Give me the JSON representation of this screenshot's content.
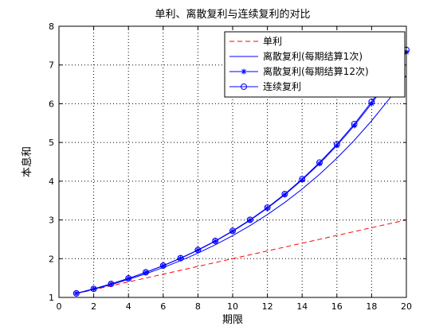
{
  "chart_data": {
    "type": "line",
    "title": "单利、离散复利与连续复利的对比",
    "xlabel": "期限",
    "ylabel": "本息和",
    "xlim": [
      0,
      20
    ],
    "ylim": [
      1,
      8
    ],
    "xticks": [
      "0",
      "2",
      "4",
      "6",
      "8",
      "10",
      "12",
      "14",
      "16",
      "18",
      "20"
    ],
    "yticks": [
      "1",
      "2",
      "3",
      "4",
      "5",
      "6",
      "7",
      "8"
    ],
    "grid": true,
    "legend_position": "top-right",
    "x": [
      1,
      2,
      3,
      4,
      5,
      6,
      7,
      8,
      9,
      10,
      11,
      12,
      13,
      14,
      15,
      16,
      17,
      18,
      19,
      20
    ],
    "series": [
      {
        "name": "单利",
        "color": "#ff0000",
        "style": "dashed",
        "marker": "none",
        "values": [
          1.1,
          1.2,
          1.3,
          1.4,
          1.5,
          1.6,
          1.7,
          1.8,
          1.9,
          2.0,
          2.1,
          2.2,
          2.3,
          2.4,
          2.5,
          2.6,
          2.7,
          2.8,
          2.9,
          3.0
        ]
      },
      {
        "name": "离散复利(每期结算1次)",
        "color": "#0000ff",
        "style": "solid",
        "marker": "none",
        "values": [
          1.1,
          1.21,
          1.331,
          1.4641,
          1.6105,
          1.7716,
          1.9487,
          2.1436,
          2.3579,
          2.5937,
          2.8531,
          3.1384,
          3.4523,
          3.7975,
          4.1772,
          4.595,
          5.0545,
          5.5599,
          6.1159,
          6.7275
        ]
      },
      {
        "name": "离散复利(每期结算12次)",
        "color": "#0000ff",
        "style": "solid",
        "marker": "star",
        "values": [
          1.1047,
          1.2204,
          1.3482,
          1.4894,
          1.6453,
          1.8176,
          2.0079,
          2.2182,
          2.4504,
          2.707,
          2.9905,
          3.3036,
          3.6496,
          4.0317,
          4.4539,
          4.9203,
          5.4355,
          6.0047,
          6.6335,
          7.3281
        ]
      },
      {
        "name": "连续复利",
        "color": "#0000ff",
        "style": "solid",
        "marker": "circle",
        "values": [
          1.1052,
          1.2214,
          1.3499,
          1.4918,
          1.6487,
          1.8221,
          2.0138,
          2.2255,
          2.4596,
          2.7183,
          3.0042,
          3.3201,
          3.6693,
          4.0552,
          4.4817,
          4.953,
          5.4739,
          6.0496,
          6.6859,
          7.3891
        ]
      }
    ]
  }
}
